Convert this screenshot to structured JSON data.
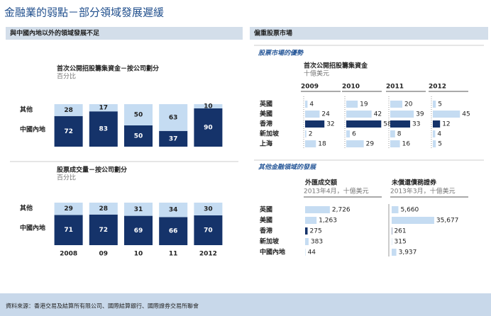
{
  "title": "金融業的弱點－部分領域發展遲緩",
  "footer": "資料來源：香港交易及結算所有限公司、國際結算銀行、國際證券交易所聯會",
  "left": {
    "header": "與中國內地以外的領域發展不足"
  },
  "right": {
    "header": "偏重股票市場",
    "sections": [
      "股票市場的優勢",
      "其他金融領域的發展"
    ]
  },
  "chart_data": [
    {
      "type": "bar",
      "stacked": true,
      "title": "首次公開招股籌集資金－按公司劃分",
      "subtitle": "百分比",
      "series": [
        {
          "name": "中國內地",
          "color": "#15336a",
          "values": [
            72,
            83,
            50,
            37,
            90
          ]
        },
        {
          "name": "其他",
          "color": "#c5dcf2",
          "values": [
            28,
            17,
            50,
            63,
            10
          ]
        }
      ]
    },
    {
      "type": "bar",
      "stacked": true,
      "title": "股票成交量－按公司劃分",
      "subtitle": "百分比",
      "categories": [
        "2008",
        "09",
        "10",
        "11",
        "2012"
      ],
      "series": [
        {
          "name": "中國內地",
          "color": "#15336a",
          "values": [
            71,
            72,
            69,
            66,
            70
          ]
        },
        {
          "name": "其他",
          "color": "#c5dcf2",
          "values": [
            29,
            28,
            31,
            34,
            30
          ]
        }
      ]
    },
    {
      "type": "bar",
      "orientation": "horizontal",
      "title": "首次公開招股籌集資金",
      "subtitle": "十億美元",
      "categories": [
        "英國",
        "美國",
        "香港",
        "新加坡",
        "上海"
      ],
      "bar_colors": [
        "#c5dcf2",
        "#c5dcf2",
        "#15336a",
        "#c5dcf2",
        "#c5dcf2"
      ],
      "series": [
        {
          "name": "2009",
          "values": [
            4,
            24,
            32,
            2,
            18
          ]
        },
        {
          "name": "2010",
          "values": [
            19,
            42,
            58,
            6,
            29
          ]
        },
        {
          "name": "2011",
          "values": [
            20,
            39,
            33,
            8,
            16
          ]
        },
        {
          "name": "2012",
          "values": [
            5,
            45,
            12,
            4,
            5
          ]
        }
      ]
    },
    {
      "type": "bar",
      "orientation": "horizontal",
      "categories": [
        "英國",
        "美國",
        "香港",
        "新加坡",
        "中國內地"
      ],
      "bar_colors": [
        "#c5dcf2",
        "#c5dcf2",
        "#15336a",
        "#c5dcf2",
        "#c5dcf2"
      ],
      "series": [
        {
          "name": "外匯成交額",
          "unit": "2013年4月，十億美元",
          "values": [
            2726,
            1263,
            275,
            383,
            44
          ],
          "value_labels": [
            "2,726",
            "1,263",
            "275",
            "383",
            "44"
          ]
        },
        {
          "name": "未償還債務證券",
          "unit": "2013年3月，十億美元",
          "values": [
            5660,
            35677,
            261,
            315,
            3937
          ],
          "value_labels": [
            "5,660",
            "35,677",
            "261",
            "315",
            "3,937"
          ]
        }
      ]
    }
  ]
}
